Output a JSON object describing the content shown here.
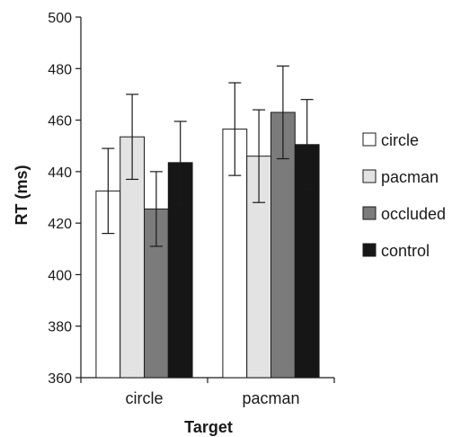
{
  "chart_data": {
    "type": "bar",
    "title": "",
    "xlabel": "Target",
    "ylabel": "RT (ms)",
    "ylim": [
      360,
      500
    ],
    "yticks": [
      360,
      380,
      400,
      420,
      440,
      460,
      480,
      500
    ],
    "categories": [
      "circle",
      "pacman"
    ],
    "series": [
      {
        "name": "circle",
        "color": "#ffffff",
        "values": [
          432.5,
          456.5
        ],
        "error": [
          16.5,
          18.0
        ]
      },
      {
        "name": "pacman",
        "color": "#e3e3e3",
        "values": [
          453.5,
          446.0
        ],
        "error": [
          16.5,
          18.0
        ]
      },
      {
        "name": "occluded",
        "color": "#7b7b7b",
        "values": [
          425.5,
          463.0
        ],
        "error": [
          14.5,
          18.0
        ]
      },
      {
        "name": "control",
        "color": "#161616",
        "values": [
          443.5,
          450.5
        ],
        "error": [
          16.0,
          17.5
        ]
      }
    ],
    "grid": false,
    "legend_position": "right"
  }
}
